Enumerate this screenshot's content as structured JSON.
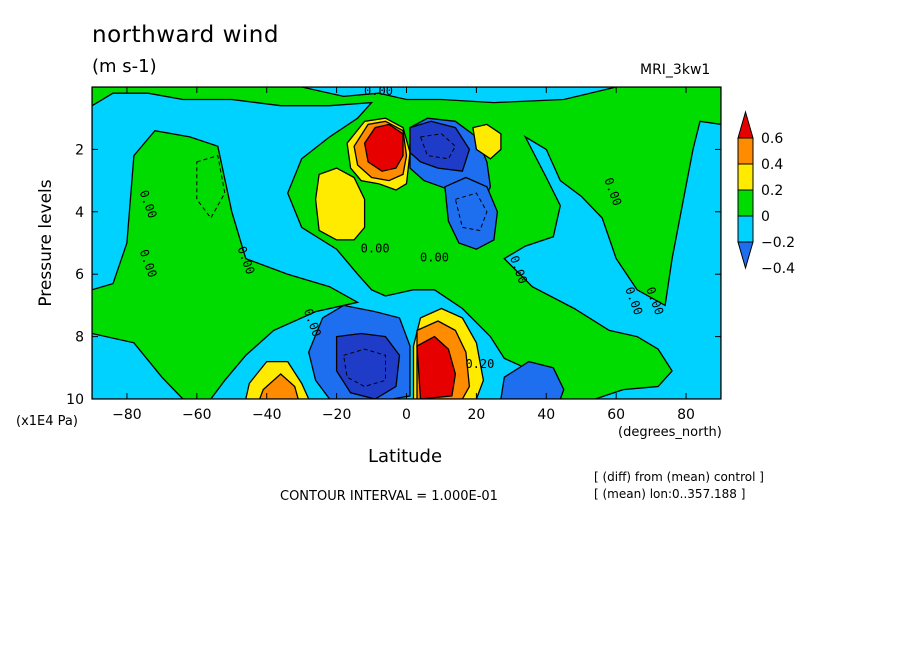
{
  "header": {
    "title": "northward wind",
    "units": "(m s-1)",
    "model": "MRI_3kw1"
  },
  "footer": {
    "contour_interval": "CONTOUR INTERVAL = 1.000E-01",
    "note_diff": "[ (diff) from (mean) control ]",
    "note_mean": "[ (mean) lon:0..357.188 ]"
  },
  "colors": {
    "c_neg6": "#1e3cc8",
    "c_neg4": "#1e6ef0",
    "c_neg2": "#00d2ff",
    "c_zero": "#00dc00",
    "c_pos2": "#ffeb00",
    "c_pos4": "#ff8c00",
    "c_pos6": "#e60000",
    "c_pos8": "#b40000"
  },
  "chart_data": {
    "type": "heatmap",
    "title": "northward wind",
    "xlabel": "Latitude",
    "x_units": "(degrees_north)",
    "ylabel": "Pressure levels",
    "y_units": "(x1E4 Pa)",
    "xlim": [
      -90,
      90
    ],
    "ylim": [
      10,
      0
    ],
    "x_ticks": [
      -80,
      -60,
      -40,
      -20,
      0,
      20,
      40,
      60,
      80
    ],
    "y_ticks": [
      2,
      4,
      6,
      8,
      10
    ],
    "colorbar": {
      "levels": [
        0.6,
        0.4,
        0.2,
        0,
        -0.2,
        -0.4
      ],
      "level_labels": [
        "0.6",
        "0.4",
        "0.2",
        "0",
        "−0.2",
        "−0.4"
      ]
    },
    "contour_labels": [
      {
        "text": "0.00",
        "x": -8,
        "y": 0.25
      },
      {
        "text": "0.00",
        "x": -75,
        "y": 3.8
      },
      {
        "text": "0.00",
        "x": -75,
        "y": 5.7
      },
      {
        "text": "0.00",
        "x": -47,
        "y": 5.6
      },
      {
        "text": "0.00",
        "x": -28,
        "y": 7.6
      },
      {
        "text": "0.00",
        "x": -9,
        "y": 5.3
      },
      {
        "text": "0.00",
        "x": 8,
        "y": 5.6
      },
      {
        "text": "0.00",
        "x": 31,
        "y": 5.9
      },
      {
        "text": "0.00",
        "x": 58,
        "y": 3.4
      },
      {
        "text": "0.00",
        "x": 64,
        "y": 6.9
      },
      {
        "text": "0.00",
        "x": 70,
        "y": 6.9
      },
      {
        "text": "0.20",
        "x": 21,
        "y": 9.0
      }
    ],
    "fields": [
      {
        "name": "bg",
        "value": -0.1
      },
      {
        "name": "green-west-band",
        "value": 0.05
      },
      {
        "name": "green-center",
        "value": 0.05
      },
      {
        "name": "yellow-upper-west",
        "value": 0.25
      },
      {
        "name": "yellow-upper-jet",
        "value": 0.3
      },
      {
        "name": "orange-upper-jet",
        "value": 0.45
      },
      {
        "name": "red-upper-jet",
        "value": 0.7
      },
      {
        "name": "blue-upper-jet",
        "value": -0.3
      },
      {
        "name": "darkblue-upper-jet",
        "value": -0.5
      },
      {
        "name": "yellow-lower-hadley",
        "value": 0.3
      },
      {
        "name": "orange-lower-hadley",
        "value": 0.5
      },
      {
        "name": "red-lower-hadley",
        "value": 0.7
      },
      {
        "name": "blue-lower-hadley",
        "value": -0.3
      },
      {
        "name": "darkblue-lower-hadley",
        "value": -0.5
      },
      {
        "name": "yellow-ferrel-south",
        "value": 0.3
      },
      {
        "name": "orange-ferrel-south",
        "value": 0.5
      },
      {
        "name": "blue-ferrel-north",
        "value": -0.25
      },
      {
        "name": "blue-upper-east",
        "value": -0.25
      },
      {
        "name": "yellow-upper-east",
        "value": 0.25
      }
    ]
  }
}
